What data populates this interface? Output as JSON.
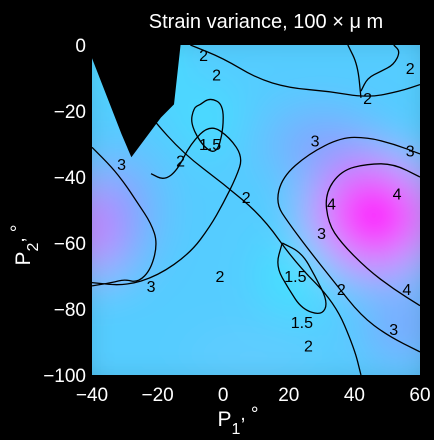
{
  "chart_data": {
    "type": "heatmap",
    "subtype": "filled contour",
    "title": "Strain variance, 100  × μ m",
    "xlabel": "P",
    "xlabel_sub": "1",
    "xlabel_unit": ", °",
    "ylabel": "P",
    "ylabel_sub": "2",
    "ylabel_unit": ", °",
    "xlim": [
      -40,
      60
    ],
    "ylim": [
      -100,
      0
    ],
    "xticks": [
      "−40",
      "−20",
      "0",
      "20",
      "40",
      "60"
    ],
    "yticks": [
      "0",
      "−20",
      "−40",
      "−60",
      "−80",
      "−100"
    ],
    "xtick_values": [
      -40,
      -20,
      0,
      20,
      40,
      60
    ],
    "ytick_values": [
      0,
      -20,
      -40,
      -60,
      -80,
      -100
    ],
    "colormap": {
      "low": "#33eeff",
      "mid": "#8899ff",
      "high": "#ff00ff"
    },
    "masked_region_color": "#000000",
    "contour_levels": [
      "1.5",
      "2",
      "3",
      "4"
    ],
    "contours": [
      {
        "level": "2",
        "points": [
          [
            -40,
            -3
          ],
          [
            -30,
            -11
          ],
          [
            -22,
            -22
          ],
          [
            -12,
            -33
          ],
          [
            0,
            -42
          ],
          [
            12,
            -52
          ],
          [
            22,
            -66
          ],
          [
            34,
            -78
          ],
          [
            40,
            -92
          ],
          [
            42,
            -100
          ]
        ]
      },
      {
        "level": "2",
        "points": [
          [
            -10,
            0
          ],
          [
            0,
            -4
          ],
          [
            10,
            -10
          ],
          [
            20,
            -13
          ],
          [
            32,
            -14
          ],
          [
            44,
            -16
          ],
          [
            54,
            -14
          ],
          [
            60,
            -12
          ]
        ]
      },
      {
        "level": "2",
        "points": [
          [
            38,
            0
          ],
          [
            41,
            -6
          ],
          [
            42,
            -16
          ]
        ]
      },
      {
        "level": "2",
        "points": [
          [
            42,
            -14
          ],
          [
            44,
            -10
          ],
          [
            48,
            -8
          ],
          [
            52,
            -6
          ],
          [
            54,
            -2
          ],
          [
            52,
            0
          ]
        ]
      },
      {
        "level": "2",
        "points": [
          [
            -40,
            -72
          ],
          [
            -30,
            -73
          ],
          [
            -20,
            -70
          ],
          [
            -10,
            -63
          ],
          [
            -4,
            -55
          ],
          [
            0,
            -48
          ],
          [
            4,
            -40
          ],
          [
            6,
            -34
          ],
          [
            2,
            -28
          ],
          [
            -4,
            -24
          ],
          [
            -10,
            -30
          ],
          [
            -14,
            -38
          ],
          [
            -18,
            -41
          ],
          [
            -22,
            -39
          ]
        ]
      },
      {
        "level": "1.5",
        "points": [
          [
            -7,
            -18
          ],
          [
            -4,
            -16
          ],
          [
            0,
            -18
          ],
          [
            0,
            -26
          ],
          [
            -2,
            -33
          ],
          [
            -6,
            -31
          ],
          [
            -10,
            -24
          ],
          [
            -9,
            -19
          ],
          [
            -7,
            -18
          ]
        ]
      },
      {
        "level": "1.5",
        "points": [
          [
            18,
            -60
          ],
          [
            24,
            -63
          ],
          [
            28,
            -70
          ],
          [
            32,
            -78
          ],
          [
            30,
            -82
          ],
          [
            24,
            -80
          ],
          [
            20,
            -74
          ],
          [
            16,
            -67
          ],
          [
            18,
            -60
          ]
        ]
      },
      {
        "level": "3",
        "points": [
          [
            -40,
            -31
          ],
          [
            -34,
            -37
          ],
          [
            -30,
            -42
          ],
          [
            -26,
            -48
          ],
          [
            -22,
            -54
          ],
          [
            -20,
            -60
          ],
          [
            -22,
            -68
          ],
          [
            -26,
            -72
          ],
          [
            -30,
            -71
          ],
          [
            -34,
            -72
          ],
          [
            -40,
            -73
          ]
        ]
      },
      {
        "level": "3",
        "points": [
          [
            60,
            -33
          ],
          [
            52,
            -30
          ],
          [
            44,
            -28
          ],
          [
            36,
            -28
          ],
          [
            26,
            -33
          ],
          [
            18,
            -40
          ],
          [
            16,
            -48
          ],
          [
            20,
            -54
          ],
          [
            26,
            -62
          ],
          [
            34,
            -72
          ],
          [
            42,
            -82
          ],
          [
            50,
            -88
          ],
          [
            60,
            -93
          ]
        ]
      },
      {
        "level": "4",
        "points": [
          [
            60,
            -40
          ],
          [
            52,
            -36
          ],
          [
            44,
            -36
          ],
          [
            36,
            -38
          ],
          [
            31,
            -45
          ],
          [
            32,
            -54
          ],
          [
            36,
            -60
          ],
          [
            44,
            -68
          ],
          [
            52,
            -74
          ],
          [
            60,
            -79
          ]
        ]
      }
    ],
    "contour_labels": [
      {
        "text": "2",
        "x": -6,
        "y": -3
      },
      {
        "text": "2",
        "x": -2,
        "y": -9
      },
      {
        "text": "2",
        "x": 44,
        "y": -16
      },
      {
        "text": "2",
        "x": 57,
        "y": -7
      },
      {
        "text": "1.5",
        "x": -4,
        "y": -30
      },
      {
        "text": "2",
        "x": -13,
        "y": -35
      },
      {
        "text": "3",
        "x": -31,
        "y": -36
      },
      {
        "text": "3",
        "x": 57,
        "y": -32
      },
      {
        "text": "3",
        "x": 28,
        "y": -29
      },
      {
        "text": "4",
        "x": 53,
        "y": -45
      },
      {
        "text": "4",
        "x": 33,
        "y": -48
      },
      {
        "text": "2",
        "x": 7,
        "y": -46
      },
      {
        "text": "3",
        "x": 30,
        "y": -57
      },
      {
        "text": "2",
        "x": -1,
        "y": -70
      },
      {
        "text": "1.5",
        "x": 22,
        "y": -70
      },
      {
        "text": "2",
        "x": 36,
        "y": -74
      },
      {
        "text": "4",
        "x": 56,
        "y": -74
      },
      {
        "text": "1.5",
        "x": 24,
        "y": -84
      },
      {
        "text": "3",
        "x": -22,
        "y": -73
      },
      {
        "text": "3",
        "x": 52,
        "y": -86
      },
      {
        "text": "2",
        "x": 26,
        "y": -91
      }
    ]
  }
}
